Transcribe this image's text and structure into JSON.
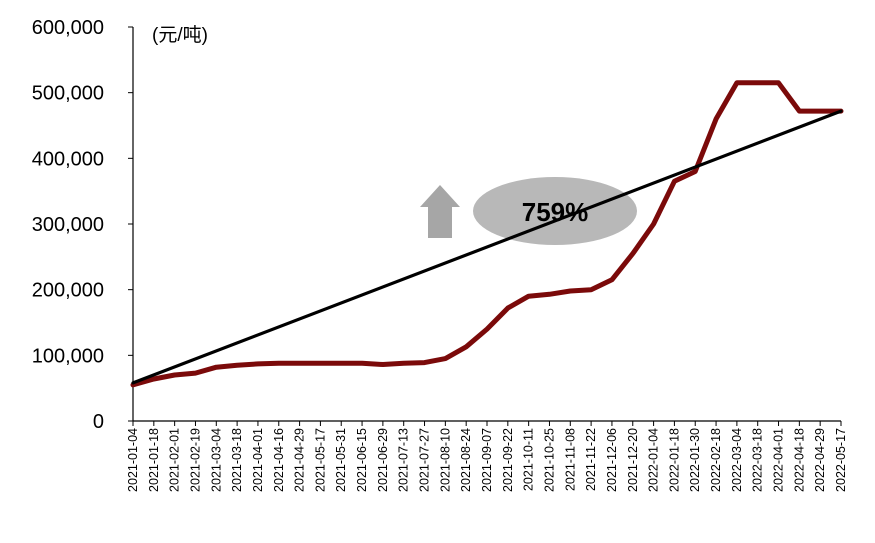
{
  "chart_data": {
    "type": "line",
    "ylabel": "(元/吨)",
    "ylim": [
      0,
      600000
    ],
    "yticks": [
      0,
      100000,
      200000,
      300000,
      400000,
      500000,
      600000
    ],
    "ytick_labels": [
      "0",
      "100,000",
      "200,000",
      "300,000",
      "400,000",
      "500,000",
      "600,000"
    ],
    "xticks": [
      "2021-01-04",
      "2021-01-18",
      "2021-02-01",
      "2021-02-19",
      "2021-03-04",
      "2021-03-18",
      "2021-04-01",
      "2021-04-16",
      "2021-04-29",
      "2021-05-17",
      "2021-05-31",
      "2021-06-15",
      "2021-06-29",
      "2021-07-13",
      "2021-07-27",
      "2021-08-10",
      "2021-08-24",
      "2021-09-07",
      "2021-09-22",
      "2021-10-11",
      "2021-10-25",
      "2021-11-08",
      "2021-11-22",
      "2021-12-06",
      "2021-12-20",
      "2022-01-04",
      "2022-01-18",
      "2022-01-30",
      "2022-02-18",
      "2022-03-04",
      "2022-03-18",
      "2022-04-01",
      "2022-04-18",
      "2022-04-29",
      "2022-05-17"
    ],
    "series": [
      {
        "color": "#7b0a0a",
        "points": [
          [
            "2021-01-04",
            55000
          ],
          [
            "2021-01-18",
            64000
          ],
          [
            "2021-02-01",
            70000
          ],
          [
            "2021-02-19",
            73000
          ],
          [
            "2021-03-04",
            82000
          ],
          [
            "2021-03-18",
            85000
          ],
          [
            "2021-04-01",
            87000
          ],
          [
            "2021-04-16",
            88000
          ],
          [
            "2021-04-29",
            88000
          ],
          [
            "2021-05-17",
            88000
          ],
          [
            "2021-05-31",
            88000
          ],
          [
            "2021-06-15",
            88000
          ],
          [
            "2021-06-29",
            86000
          ],
          [
            "2021-07-13",
            88000
          ],
          [
            "2021-07-27",
            89000
          ],
          [
            "2021-08-10",
            95000
          ],
          [
            "2021-08-24",
            113000
          ],
          [
            "2021-09-07",
            140000
          ],
          [
            "2021-09-22",
            172000
          ],
          [
            "2021-10-11",
            190000
          ],
          [
            "2021-10-25",
            193000
          ],
          [
            "2021-11-08",
            198000
          ],
          [
            "2021-11-22",
            200000
          ],
          [
            "2021-12-06",
            215000
          ],
          [
            "2021-12-20",
            255000
          ],
          [
            "2022-01-04",
            300000
          ],
          [
            "2022-01-18",
            365000
          ],
          [
            "2022-01-30",
            380000
          ],
          [
            "2022-02-18",
            460000
          ],
          [
            "2022-03-04",
            515000
          ],
          [
            "2022-03-18",
            515000
          ],
          [
            "2022-04-01",
            515000
          ],
          [
            "2022-04-18",
            472000
          ],
          [
            "2022-04-29",
            472000
          ],
          [
            "2022-05-17",
            472000
          ]
        ]
      },
      {
        "color": "#000000",
        "points": [
          [
            "2021-01-04",
            58000
          ],
          [
            "2022-05-17",
            472000
          ]
        ]
      }
    ],
    "annotation": {
      "label": "759%",
      "arrow": "up",
      "bubble_color": "#b8b8b8",
      "arrow_color": "#a6a6a6"
    }
  }
}
